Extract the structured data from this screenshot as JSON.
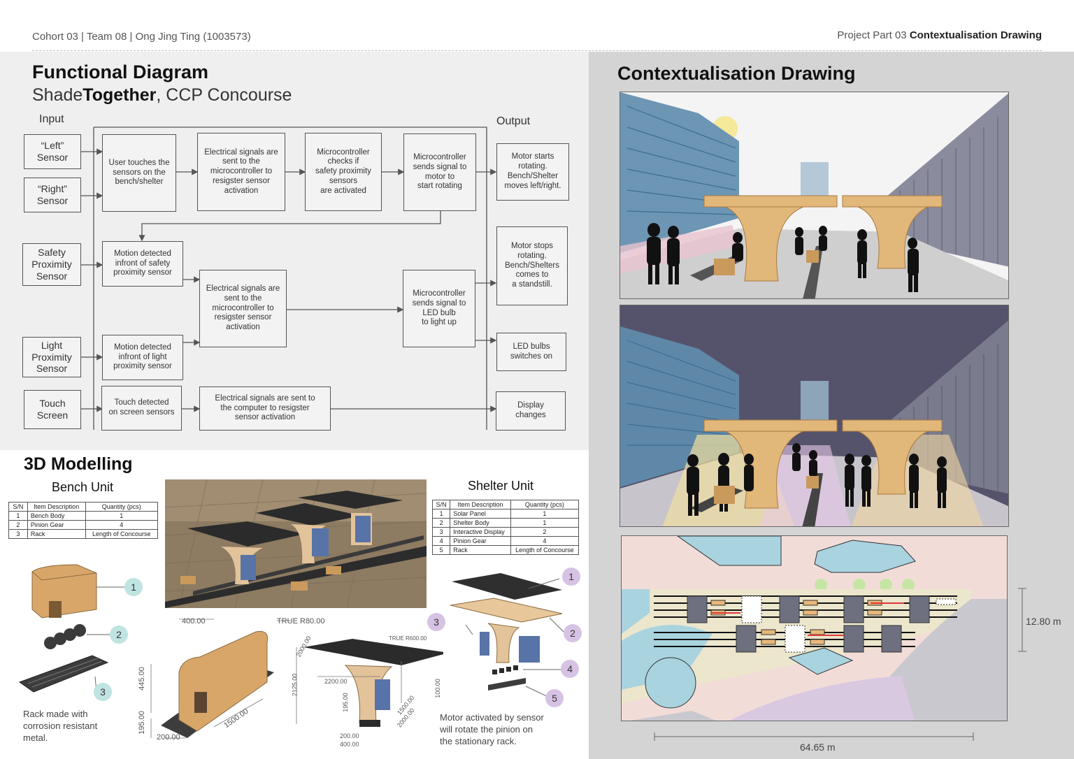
{
  "header": {
    "left": "Cohort 03 | Team 08 | Ong Jing Ting (1003573)",
    "right_prefix": "Project Part 03",
    "right_bold": "Contextualisation Drawing"
  },
  "functional": {
    "title": "Functional Diagram",
    "subtitle_pre": "Shade",
    "subtitle_bold": "Together",
    "subtitle_post": ", CCP Concourse",
    "input_label": "Input",
    "output_label": "Output",
    "inputs": [
      "“Left”\nSensor",
      "“Right”\nSensor",
      "Safety\nProximity\nSensor",
      "Light\nProximity\nSensor",
      "Touch\nScreen"
    ],
    "steps": {
      "touch_sensor": "User touches the\nsensors on the\nbench/shelter",
      "elec1": "Electrical signals are\nsent to the\nmicrocontroller to\nresigster sensor\nactivation",
      "micro_check": "Microcontroller\nchecks if\nsafety proximity\nsensors\nare activated",
      "micro_motor": "Microcontroller\nsends signal to\nmotor to\nstart rotating",
      "motion_safety": "Motion detected\ninfront of safety\nproximity sensor",
      "elec2": "Electrical signals are\nsent to the\nmicrocontroller to\nresigster sensor\nactivation",
      "micro_led": "Microcontroller\nsends signal to\nLED bulb\nto light up",
      "motion_light": "Motion detected\ninfront of light\nproximity sensor",
      "touch_screen": "Touch detected\non screen sensors",
      "elec3": "Electrical signals are sent to\nthe computer to resigster\nsensor activation"
    },
    "outputs": {
      "motor_start": "Motor starts\nrotating.\nBench/Shelter\nmoves left/right.",
      "motor_stop": "Motor stops\nrotating.\nBench/Shelters\ncomes to\na standstill.",
      "led": "LED bulbs\nswitches on",
      "display": "Display\nchanges"
    }
  },
  "modelling": {
    "title": "3D Modelling",
    "bench": {
      "title": "Bench Unit",
      "headers": [
        "S/N",
        "Item Description",
        "Quantity (pcs)"
      ],
      "rows": [
        [
          "1",
          "Bench Body",
          "1"
        ],
        [
          "2",
          "Pinion Gear",
          "4"
        ],
        [
          "3",
          "Rack",
          "Length of Concourse"
        ]
      ],
      "note": "Rack made with\ncorrosion resistant\nmetal.",
      "dims": [
        "400.00",
        "TRUE R80.00",
        "445.00",
        "195.00",
        "200.00",
        "1500.00"
      ]
    },
    "shelter": {
      "title": "Shelter Unit",
      "headers": [
        "S/N",
        "Item Description",
        "Quantity (pcs)"
      ],
      "rows": [
        [
          "1",
          "Solar Panel",
          "1"
        ],
        [
          "2",
          "Shelter Body",
          "1"
        ],
        [
          "3",
          "Interactive Display",
          "2"
        ],
        [
          "4",
          "Pinion Gear",
          "4"
        ],
        [
          "5",
          "Rack",
          "Length of Concourse"
        ]
      ],
      "note": "Motor activated by sensor\nwill rotate the pinion on\nthe stationary rack.",
      "dims": [
        "TRUE R600.00",
        "2000.00",
        "2200.00",
        "2125.00",
        "195.00",
        "100.00",
        "1500.00",
        "2000.00",
        "200.00",
        "400.00"
      ]
    },
    "badges_bench": [
      "1",
      "2",
      "3"
    ],
    "badges_shelter": [
      "1",
      "2",
      "3",
      "4",
      "5"
    ]
  },
  "context": {
    "title": "Contextualisation Drawing",
    "dim_height": "12.80 m",
    "dim_width": "64.65 m"
  },
  "colors": {
    "wood": "#e2b77a",
    "sky_day": "#f4f4f4",
    "sky_night": "#55536b",
    "building_blue": "#6d96b4",
    "building_grey": "#8a8c9e",
    "teal_badge": "#bfe4e1",
    "purple_badge": "#d6c3e4",
    "plan_pink": "#f2dcd8",
    "plan_blue": "#a9d3df"
  }
}
